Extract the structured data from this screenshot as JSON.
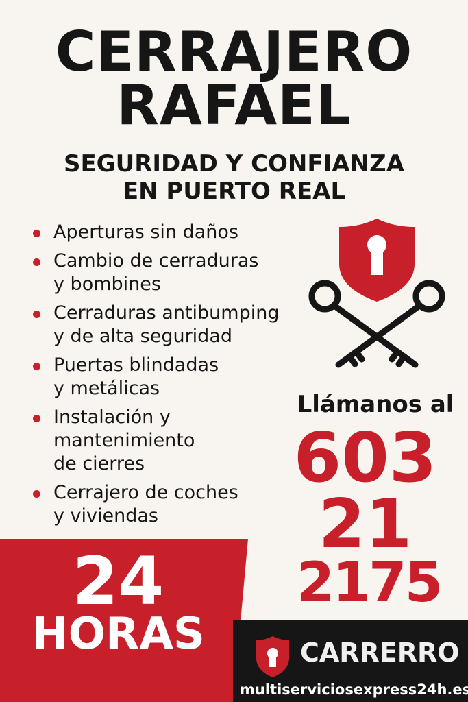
{
  "header": {
    "title_line1": "CERRAJERO",
    "title_line2": "RAFAEL",
    "subtitle_line1": "SEGURIDAD Y CONFIANZA",
    "subtitle_line2": "EN PUERTO REAL"
  },
  "services": [
    {
      "line1": "Aperturas sin daños",
      "line2": ""
    },
    {
      "line1": "Cambio de cerraduras",
      "line2": "y bombines"
    },
    {
      "line1": "Cerraduras antibumping",
      "line2": "y de alta seguridad"
    },
    {
      "line1": "Puertas blindadas",
      "line2": "y metálicas"
    },
    {
      "line1": "Instalación y",
      "line2": "mantenimiento",
      "line3": "de cierres"
    },
    {
      "line1": "Cerrajero de coches",
      "line2": "y viviendas"
    }
  ],
  "contact": {
    "call_label": "Llámanos al",
    "phone_part1": "603",
    "phone_part2": "21",
    "phone_part3": "2175"
  },
  "hours": {
    "number": "24",
    "label": "HORAS"
  },
  "footer": {
    "brand": "CARRERRO",
    "website": "multiserviciosexpress24h.es"
  },
  "icons": {
    "main": "shield-keyhole-icon",
    "crossed": "crossed-keys-icon",
    "brand": "shield-keyhole-icon"
  },
  "colors": {
    "accent": "#c8202a",
    "dark": "#161616",
    "background": "#f8f5f0"
  }
}
